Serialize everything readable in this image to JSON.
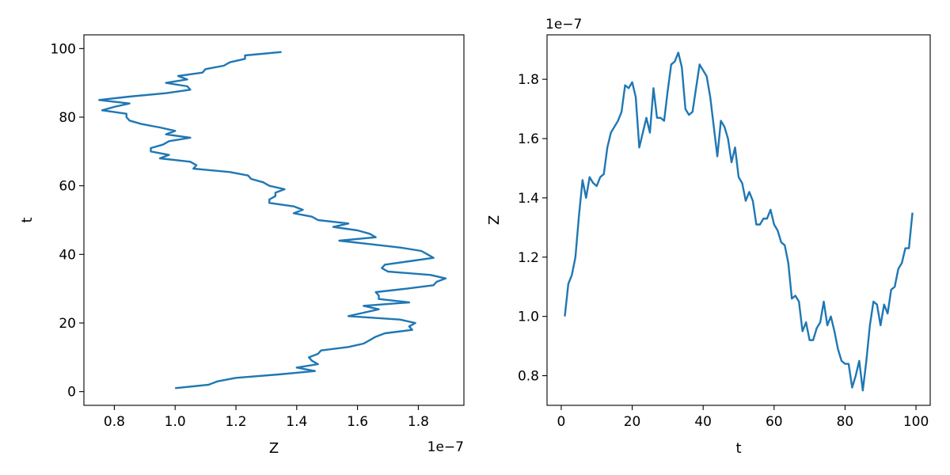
{
  "chart_data": [
    {
      "type": "line",
      "orientation": "t-vertical",
      "xlabel": "Z",
      "ylabel": "t",
      "x_offset_text": "1e−7",
      "xlim": [
        0.7,
        1.95
      ],
      "ylim": [
        -4,
        104
      ],
      "xticks": [
        0.8,
        1.0,
        1.2,
        1.4,
        1.6,
        1.8
      ],
      "xtick_labels": [
        "0.8",
        "1.0",
        "1.2",
        "1.4",
        "1.6",
        "1.8"
      ],
      "yticks": [
        0,
        20,
        40,
        60,
        80,
        100
      ],
      "ytick_labels": [
        "0",
        "20",
        "40",
        "60",
        "80",
        "100"
      ],
      "grid": false,
      "series": [
        {
          "color": "#1f77b4",
          "ref": "shared_series"
        }
      ]
    },
    {
      "type": "line",
      "orientation": "t-horizontal",
      "xlabel": "t",
      "ylabel": "Z",
      "y_offset_text": "1e−7",
      "xlim": [
        -4,
        104
      ],
      "ylim": [
        0.7,
        1.95
      ],
      "xticks": [
        0,
        20,
        40,
        60,
        80,
        100
      ],
      "xtick_labels": [
        "0",
        "20",
        "40",
        "60",
        "80",
        "100"
      ],
      "yticks": [
        0.8,
        1.0,
        1.2,
        1.4,
        1.6,
        1.8
      ],
      "ytick_labels": [
        "0.8",
        "1.0",
        "1.2",
        "1.4",
        "1.6",
        "1.8"
      ],
      "grid": false,
      "series": [
        {
          "color": "#1f77b4",
          "ref": "shared_series"
        }
      ]
    }
  ],
  "shared_series": {
    "t": [
      1,
      2,
      3,
      4,
      5,
      6,
      7,
      8,
      9,
      10,
      11,
      12,
      13,
      14,
      15,
      16,
      17,
      18,
      19,
      20,
      21,
      22,
      23,
      24,
      25,
      26,
      27,
      28,
      29,
      30,
      31,
      32,
      33,
      34,
      35,
      36,
      37,
      38,
      39,
      40,
      41,
      42,
      43,
      44,
      45,
      46,
      47,
      48,
      49,
      50,
      51,
      52,
      53,
      54,
      55,
      56,
      57,
      58,
      59,
      60,
      61,
      62,
      63,
      64,
      65,
      66,
      67,
      68,
      69,
      70,
      71,
      72,
      73,
      74,
      75,
      76,
      77,
      78,
      79,
      80,
      81,
      82,
      83,
      84,
      85,
      86,
      87,
      88,
      89,
      90,
      91,
      92,
      93,
      94,
      95,
      96,
      97,
      98,
      99
    ],
    "Z": [
      1.0,
      1.11,
      1.14,
      1.2,
      1.34,
      1.46,
      1.4,
      1.47,
      1.45,
      1.44,
      1.47,
      1.48,
      1.57,
      1.62,
      1.64,
      1.66,
      1.69,
      1.78,
      1.77,
      1.79,
      1.74,
      1.57,
      1.62,
      1.67,
      1.62,
      1.77,
      1.67,
      1.67,
      1.66,
      1.76,
      1.85,
      1.86,
      1.89,
      1.84,
      1.7,
      1.68,
      1.69,
      1.77,
      1.85,
      1.83,
      1.81,
      1.74,
      1.64,
      1.54,
      1.66,
      1.64,
      1.6,
      1.52,
      1.57,
      1.47,
      1.45,
      1.39,
      1.42,
      1.39,
      1.31,
      1.31,
      1.33,
      1.33,
      1.36,
      1.31,
      1.29,
      1.25,
      1.24,
      1.18,
      1.06,
      1.07,
      1.05,
      0.95,
      0.98,
      0.92,
      0.92,
      0.96,
      0.98,
      1.05,
      0.97,
      1.0,
      0.95,
      0.89,
      0.85,
      0.84,
      0.84,
      0.76,
      0.8,
      0.85,
      0.75,
      0.85,
      0.97,
      1.05,
      1.04,
      0.97,
      1.04,
      1.01,
      1.09,
      1.1,
      1.16,
      1.18,
      1.23,
      1.23,
      1.35
    ]
  }
}
